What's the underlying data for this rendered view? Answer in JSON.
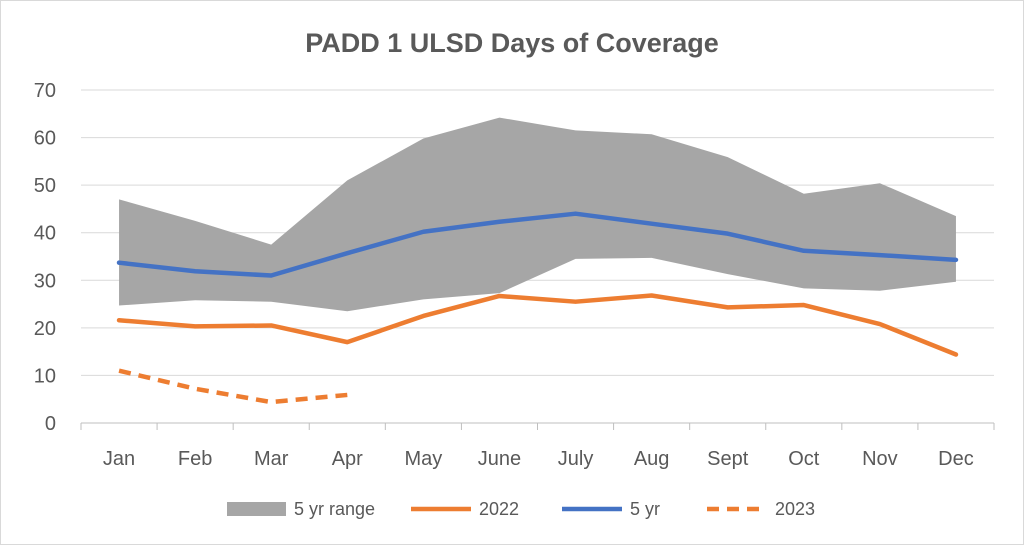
{
  "chart_data": {
    "type": "line",
    "title": "PADD 1 ULSD Days of Coverage",
    "xlabel": "",
    "ylabel": "",
    "categories": [
      "Jan",
      "Feb",
      "Mar",
      "Apr",
      "May",
      "June",
      "July",
      "Aug",
      "Sept",
      "Oct",
      "Nov",
      "Dec"
    ],
    "ylim": [
      0,
      70
    ],
    "yticks": [
      0,
      10,
      20,
      30,
      40,
      50,
      60,
      70
    ],
    "grid": true,
    "legend_position": "bottom",
    "range_band": {
      "name": "5 yr range",
      "color": "#a6a6a6",
      "low": [
        24.7,
        25.8,
        25.5,
        23.5,
        26.0,
        27.3,
        34.5,
        34.7,
        31.3,
        28.3,
        27.8,
        29.7
      ],
      "high": [
        47.0,
        42.5,
        37.5,
        51.0,
        59.8,
        64.2,
        61.5,
        60.7,
        55.9,
        48.2,
        50.4,
        43.5
      ]
    },
    "series": [
      {
        "name": "2022",
        "color": "#ed7d31",
        "style": "solid",
        "values": [
          21.6,
          20.3,
          20.5,
          17.0,
          22.5,
          26.7,
          25.5,
          26.8,
          24.3,
          24.8,
          20.8,
          14.4
        ]
      },
      {
        "name": "5 yr",
        "color": "#4472c4",
        "style": "solid",
        "values": [
          33.7,
          31.9,
          31.0,
          35.7,
          40.2,
          42.3,
          44.0,
          41.9,
          39.8,
          36.2,
          35.3,
          34.3
        ]
      },
      {
        "name": "2023",
        "color": "#ed7d31",
        "style": "dashed",
        "values": [
          11.0,
          7.2,
          4.4,
          5.9,
          null,
          null,
          null,
          null,
          null,
          null,
          null,
          null
        ]
      }
    ]
  }
}
